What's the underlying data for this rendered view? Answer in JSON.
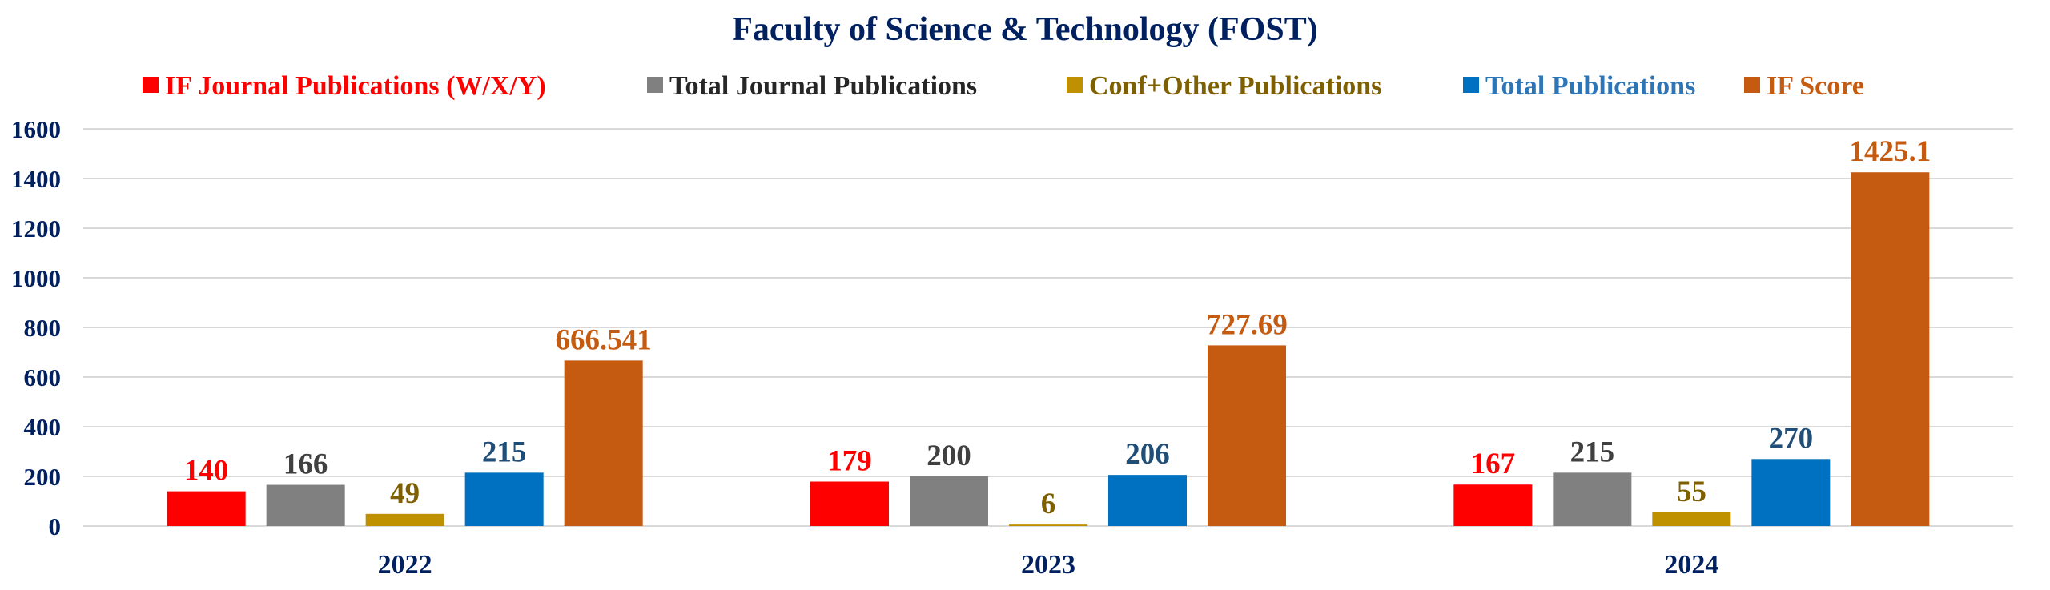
{
  "chart_data": {
    "type": "bar",
    "title": "Faculty of Science & Technology (FOST)",
    "categories": [
      "2022",
      "2023",
      "2024"
    ],
    "ylim": [
      0,
      1600
    ],
    "yticks": [
      0,
      200,
      400,
      600,
      800,
      1000,
      1200,
      1400,
      1600
    ],
    "grid": true,
    "legend_position": "top",
    "series": [
      {
        "name": "IF Journal Publications (W/X/Y)",
        "values": [
          140,
          179,
          167
        ],
        "labels": [
          "140",
          "179",
          "167"
        ],
        "color": "#FF0000",
        "label_color": "#FF0000",
        "legend_color": "#FF0000"
      },
      {
        "name": "Total Journal Publications",
        "values": [
          166,
          200,
          215
        ],
        "labels": [
          "166",
          "200",
          "215"
        ],
        "color": "#808080",
        "label_color": "#404040",
        "legend_color": "#262626"
      },
      {
        "name": "Conf+Other Publications",
        "values": [
          49,
          6,
          55
        ],
        "labels": [
          "49",
          "6",
          "55"
        ],
        "color": "#BF9000",
        "label_color": "#7F6000",
        "legend_color": "#7F6000"
      },
      {
        "name": "Total Publications",
        "values": [
          215,
          206,
          270
        ],
        "labels": [
          "215",
          "206",
          "270"
        ],
        "color": "#0070C0",
        "label_color": "#1F4E79",
        "legend_color": "#2E75B6"
      },
      {
        "name": "IF Score",
        "values": [
          666.541,
          727.69,
          1425.1
        ],
        "labels": [
          "666.541",
          "727.69",
          "1425.1"
        ],
        "color": "#C55A11",
        "label_color": "#C55A11",
        "legend_color": "#C55A11"
      }
    ],
    "axis_color": "#002060",
    "title_color": "#002060"
  }
}
